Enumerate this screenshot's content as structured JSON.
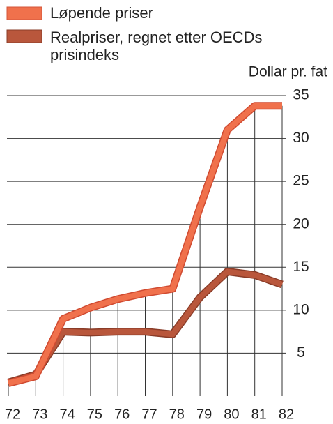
{
  "chart_data": {
    "type": "line",
    "y_label": "Dollar pr. fat",
    "categories": [
      "72",
      "73",
      "74",
      "75",
      "76",
      "77",
      "78",
      "79",
      "80",
      "81",
      "82"
    ],
    "series": [
      {
        "name": "Løpende priser",
        "color": "#f0714c",
        "values": [
          1.5,
          2.3,
          9,
          10.3,
          11.3,
          12,
          12.5,
          22,
          31,
          33.8,
          33.8
        ]
      },
      {
        "name": "Realpriser, regnet etter OECDs prisindeks",
        "color": "#b9573c",
        "values": [
          1.6,
          2.5,
          7.5,
          7.4,
          7.5,
          7.5,
          7.2,
          11.5,
          14.5,
          14.1,
          13
        ]
      }
    ],
    "ylim": [
      0,
      35
    ],
    "yticks": [
      5,
      10,
      15,
      20,
      25,
      30,
      35
    ],
    "grid": true
  }
}
